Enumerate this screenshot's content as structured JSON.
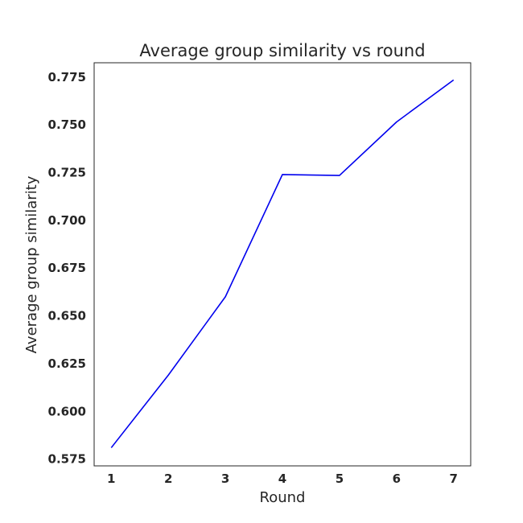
{
  "chart_data": {
    "type": "line",
    "title": "Average group similarity vs round",
    "xlabel": "Round",
    "ylabel": "Average group similarity",
    "x": [
      1,
      2,
      3,
      4,
      5,
      6,
      7
    ],
    "series": [
      {
        "values": [
          0.581,
          0.619,
          0.66,
          0.724,
          0.7235,
          0.7515,
          0.7735
        ],
        "color": "#0000ee"
      }
    ],
    "xticks": [
      "1",
      "2",
      "3",
      "4",
      "5",
      "6",
      "7"
    ],
    "yticks": [
      "0.575",
      "0.600",
      "0.625",
      "0.650",
      "0.675",
      "0.700",
      "0.725",
      "0.750",
      "0.775"
    ],
    "xlim": [
      0.7,
      7.3
    ],
    "ylim": [
      0.5715,
      0.7825
    ],
    "grid": false,
    "legend": "none"
  }
}
